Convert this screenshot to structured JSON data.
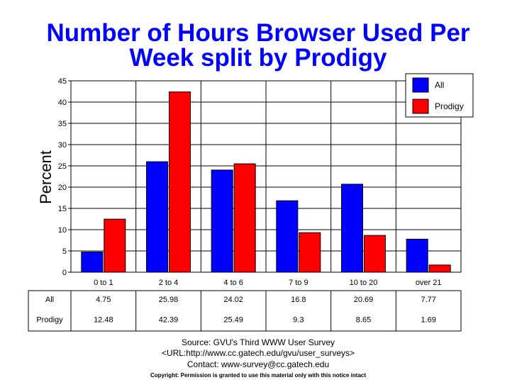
{
  "chart_data": {
    "type": "bar",
    "title_lines": [
      "Number of Hours Browser Used Per",
      "Week split by Prodigy"
    ],
    "ylabel": "Percent",
    "xlabel": "",
    "ylim": [
      0,
      45
    ],
    "yticks": [
      0,
      5,
      10,
      15,
      20,
      25,
      30,
      35,
      40,
      45
    ],
    "grid": true,
    "legend_position": "top-right",
    "categories": [
      "0 to 1",
      "2 to 4",
      "4 to 6",
      "7 to 9",
      "10 to 20",
      "over 21"
    ],
    "series": [
      {
        "name": "All",
        "color": "#0000ff",
        "values": [
          4.75,
          25.98,
          24.02,
          16.8,
          20.69,
          7.77
        ],
        "labels": [
          "4.75",
          "25.98",
          "24.02",
          "16.8",
          "20.69",
          "7.77"
        ]
      },
      {
        "name": "Prodigy",
        "color": "#ff0000",
        "values": [
          12.48,
          42.39,
          25.49,
          9.3,
          8.65,
          1.69
        ],
        "labels": [
          "12.48",
          "42.39",
          "25.49",
          "9.3",
          "8.65",
          "1.69"
        ]
      }
    ]
  },
  "footer": {
    "source": "Source: GVU's Third WWW User Survey",
    "url": "<URL:http://www.cc.gatech.edu/gvu/user_surveys>",
    "contact": "Contact: www-survey@cc.gatech.edu",
    "copyright": "Copyright: Permission is granted to use this material only with this notice intact"
  }
}
